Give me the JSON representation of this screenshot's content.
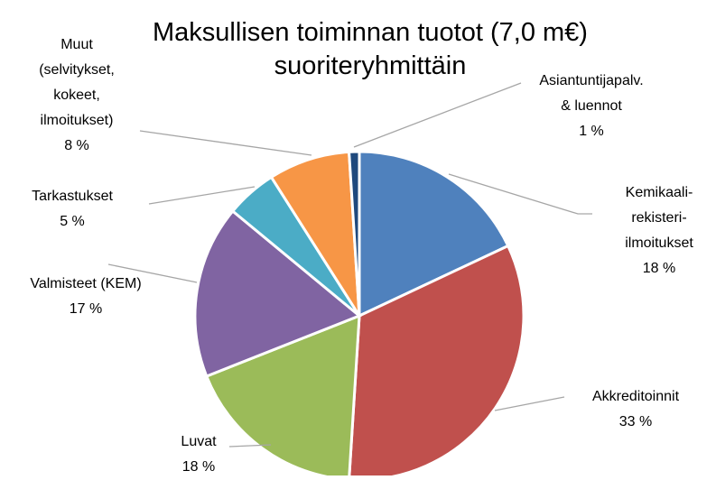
{
  "chart_data": {
    "type": "pie",
    "title": "Maksullisen toiminnan tuotot (7,0 m€)\nsuoriteryhmittäin",
    "categories": [
      "Kemikaali-\nrekisteri-\nilmoitukset",
      "Akkreditoinnit",
      "Luvat",
      "Valmisteet (KEM)",
      "Tarkastukset",
      "Muut\n(selvitykset,\nkokeet,\nilmoitukset)",
      "Asiantuntijapalv.\n& luennot"
    ],
    "values": [
      18,
      33,
      18,
      17,
      5,
      8,
      1
    ],
    "value_labels": [
      "18 %",
      "33 %",
      "18 %",
      "17 %",
      "5 %",
      "8 %",
      "1 %"
    ],
    "colors": [
      "#4f81bd",
      "#c0504d",
      "#9bbb59",
      "#8064a2",
      "#4bacc6",
      "#f79646",
      "#1f497d"
    ]
  }
}
